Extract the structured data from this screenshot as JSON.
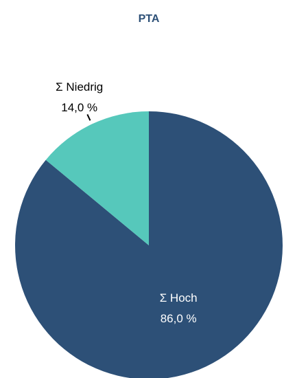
{
  "chart_data": {
    "type": "pie",
    "title": "PTA",
    "categories": [
      "Σ Hoch",
      "Σ Niedrig"
    ],
    "values": [
      86.0,
      14.0
    ],
    "value_labels": [
      "86,0 %",
      "14,0 %"
    ],
    "colors": [
      "#2d5077",
      "#56c8bb"
    ]
  }
}
